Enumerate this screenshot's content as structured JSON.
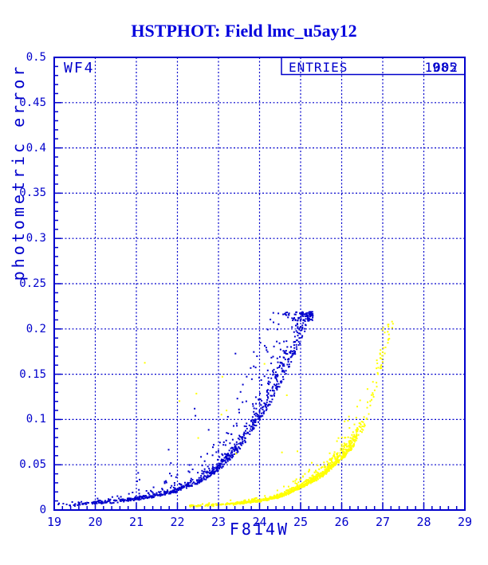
{
  "chart_data": {
    "type": "scatter",
    "title": "HSTPHOT: Field lmc_u5ay12",
    "xlabel": "F814W",
    "ylabel": "photometric error",
    "xlim": [
      19,
      29
    ],
    "ylim": [
      0,
      0.5
    ],
    "x_tick_values": [
      19,
      20,
      21,
      22,
      23,
      24,
      25,
      26,
      27,
      28,
      29
    ],
    "x_tick_labels": [
      "19",
      "20",
      "21",
      "22",
      "23",
      "24",
      "25",
      "26",
      "27",
      "28",
      "29"
    ],
    "y_tick_values": [
      0,
      0.05,
      0.1,
      0.15,
      0.2,
      0.25,
      0.3,
      0.35,
      0.4,
      0.45,
      0.5
    ],
    "y_tick_labels": [
      "0",
      "0.05",
      "0.1",
      "0.15",
      "0.2",
      "0.25",
      "0.3",
      "0.35",
      "0.4",
      "0.45",
      "0.5"
    ],
    "x_minor_step": 0.2,
    "y_minor_step": 0.01,
    "grid": "dashed lines at every major tick, both axes",
    "colors": {
      "frame_blue": "#0000CC",
      "title_blue": "#0000DD",
      "point_yellow": "#FFFF00",
      "background": "#FFFFFF"
    },
    "chip_label": "WF4",
    "legend": {
      "label": "ENTRIES",
      "values": [
        "1002",
        "985"
      ],
      "note": "two counts overprinted in same box position"
    },
    "series": [
      {
        "name": "blue",
        "color": "#0000CC",
        "entries": 1002,
        "marker": "2px square",
        "mag_range": [
          19,
          25.3
        ],
        "max_err": 0.222,
        "ridge_mag": [
          19.0,
          19.5,
          20.0,
          20.5,
          21.0,
          21.5,
          22.0,
          22.5,
          23.0,
          23.5,
          24.0,
          24.4,
          24.7,
          25.0,
          25.2,
          25.3
        ],
        "ridge_err": [
          0.0045,
          0.0055,
          0.007,
          0.009,
          0.0115,
          0.015,
          0.0205,
          0.029,
          0.043,
          0.066,
          0.098,
          0.128,
          0.155,
          0.185,
          0.208,
          0.215
        ],
        "description": "dense lower-envelope curve rising from (19,0.005) to clump at (25.2,0.21) with sparse scatter above the ridge"
      },
      {
        "name": "yellow",
        "color": "#FFFF00",
        "entries": 985,
        "marker": "2px square",
        "mag_range": [
          22.3,
          27.25
        ],
        "max_err": 0.21,
        "ridge_mag": [
          22.3,
          23.0,
          23.5,
          24.0,
          24.5,
          25.0,
          25.5,
          26.0,
          26.3,
          26.6,
          26.8,
          27.0,
          27.25
        ],
        "ridge_err": [
          0.004,
          0.0055,
          0.007,
          0.0095,
          0.014,
          0.024,
          0.036,
          0.055,
          0.07,
          0.095,
          0.125,
          0.16,
          0.205
        ],
        "description": "dense curve from (23,0.006) to (26,0.055), sparse tail up to (27.2,0.21), plus a few outliers mixed into the blue cloud"
      }
    ]
  }
}
